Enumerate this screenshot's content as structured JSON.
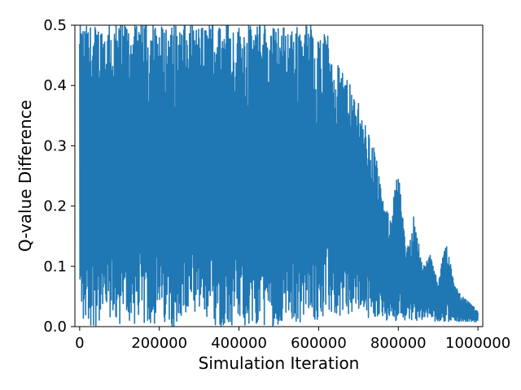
{
  "chart_data": {
    "type": "line",
    "title": "",
    "xlabel": "Simulation Iteration",
    "ylabel": "Q-value Difference",
    "xlim": [
      -12000,
      1012000
    ],
    "ylim": [
      0,
      0.5
    ],
    "xticks": [
      0,
      200000,
      400000,
      600000,
      800000,
      1000000
    ],
    "xtick_labels": [
      "0",
      "200000",
      "400000",
      "600000",
      "800000",
      "1000000"
    ],
    "yticks": [
      0.0,
      0.1,
      0.2,
      0.3,
      0.4,
      0.5
    ],
    "ytick_labels": [
      "0.0",
      "0.1",
      "0.2",
      "0.3",
      "0.4",
      "0.5"
    ],
    "grid": false,
    "legend": "none",
    "series": [
      {
        "color": "#1f77b4",
        "x": [
          0,
          100000,
          200000,
          300000,
          400000,
          460000,
          500000,
          540000,
          580000,
          600000,
          620000,
          650000,
          680000,
          700000,
          720000,
          740000,
          760000,
          780000,
          800000,
          820000,
          840000,
          860000,
          880000,
          900000,
          920000,
          940000,
          960000,
          980000,
          1000000
        ],
        "upper": [
          0.5,
          0.5,
          0.5,
          0.5,
          0.5,
          0.5,
          0.5,
          0.5,
          0.5,
          0.47,
          0.49,
          0.43,
          0.4,
          0.37,
          0.33,
          0.3,
          0.21,
          0.18,
          0.26,
          0.12,
          0.19,
          0.1,
          0.12,
          0.07,
          0.15,
          0.07,
          0.05,
          0.04,
          0.025
        ],
        "lower": [
          0.0,
          0.0,
          0.0,
          0.0,
          0.0,
          0.0,
          0.0,
          0.005,
          0.01,
          0.01,
          0.015,
          0.015,
          0.015,
          0.015,
          0.015,
          0.015,
          0.01,
          0.01,
          0.01,
          0.01,
          0.01,
          0.01,
          0.01,
          0.008,
          0.008,
          0.008,
          0.008,
          0.008,
          0.008
        ]
      }
    ]
  }
}
